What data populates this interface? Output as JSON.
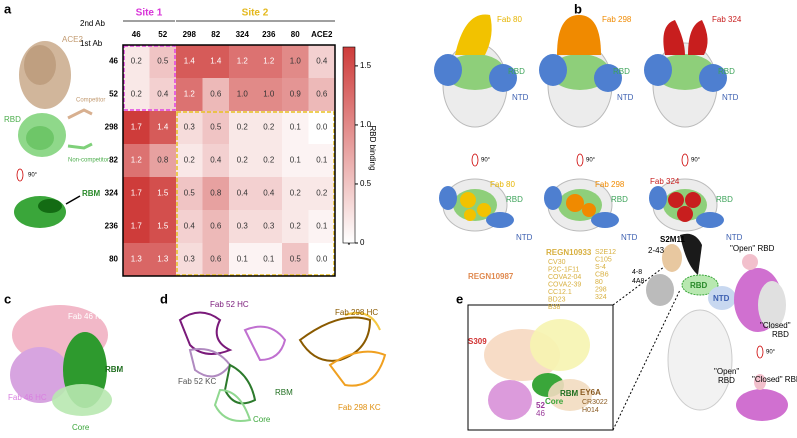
{
  "panels": [
    "a",
    "b",
    "c",
    "d",
    "e"
  ],
  "a": {
    "second_ab": "2nd Ab",
    "first_ab": "1st Ab",
    "site1": "Site 1",
    "site2": "Site 2",
    "columns": [
      "46",
      "52",
      "298",
      "82",
      "324",
      "236",
      "80",
      "ACE2"
    ],
    "rows": [
      {
        "label": "46",
        "values": [
          "0.2",
          "0.5",
          "1.4",
          "1.4",
          "1.2",
          "1.2",
          "1.0",
          "0.4"
        ]
      },
      {
        "label": "52",
        "values": [
          "0.2",
          "0.4",
          "1.2",
          "0.6",
          "1.0",
          "1.0",
          "0.9",
          "0.6"
        ]
      },
      {
        "label": "298",
        "values": [
          "1.7",
          "1.4",
          "0.3",
          "0.5",
          "0.2",
          "0.2",
          "0.1",
          "0.0"
        ]
      },
      {
        "label": "82",
        "values": [
          "1.2",
          "0.8",
          "0.2",
          "0.4",
          "0.2",
          "0.2",
          "0.1",
          "0.1"
        ]
      },
      {
        "label": "324",
        "values": [
          "1.7",
          "1.5",
          "0.5",
          "0.8",
          "0.4",
          "0.4",
          "0.2",
          "0.2"
        ]
      },
      {
        "label": "236",
        "values": [
          "1.7",
          "1.5",
          "0.4",
          "0.6",
          "0.3",
          "0.3",
          "0.2",
          "0.1"
        ]
      },
      {
        "label": "80",
        "values": [
          "1.3",
          "1.3",
          "0.3",
          "0.6",
          "0.1",
          "0.1",
          "0.5",
          "0.0"
        ]
      }
    ],
    "colorbar": {
      "title": "RBD binding",
      "plus": "+",
      "minus": "-",
      "ticks": [
        "0",
        "0.5",
        "1.0",
        "1.5"
      ]
    },
    "structure": {
      "ace2": "ACE2",
      "competitor": "Competitor",
      "rbd": "RBD",
      "non_competitor": "Non-competitor",
      "rotation": "90°",
      "rbm": "RBM"
    }
  },
  "b": {
    "top": [
      {
        "fab": "Fab 80",
        "rbd": "RBD",
        "ntd": "NTD"
      },
      {
        "fab": "Fab 298",
        "rbd": "RBD",
        "ntd": "NTD"
      },
      {
        "fab": "Fab 324",
        "rbd": "RBD",
        "ntd": "NTD"
      }
    ],
    "rotation": [
      "90°",
      "90°",
      "90°"
    ],
    "bottom": [
      {
        "fab": "Fab 80",
        "rbd": "RBD",
        "ntd": "NTD"
      },
      {
        "fab": "Fab 298",
        "rbd": "RBD",
        "ntd": "NTD"
      },
      {
        "fab": "Fab 324",
        "rbd": "RBD",
        "ntd": "NTD"
      }
    ]
  },
  "c": {
    "kc": "Fab 46 KC",
    "hc": "Fab 46 HC",
    "rbm": "RBM",
    "core": "Core"
  },
  "d": {
    "hc52": "Fab 52 HC",
    "kc52": "Fab 52 KC",
    "hc298": "Fab 298 HC",
    "kc298": "Fab 298 KC",
    "rbm": "RBM",
    "core": "Core"
  },
  "e": {
    "regn10933": "REGN10933",
    "list_yellow": [
      "CV30",
      "P2C-1F11",
      "COVA2-04",
      "COVA2-39",
      "CC12.1",
      "BD23",
      "B38"
    ],
    "list_right": [
      "S2E12",
      "C105",
      "S-4",
      "CB6",
      "80",
      "298",
      "324"
    ],
    "regn10987": "REGN10987",
    "s309": "S309",
    "fab52": "52",
    "fab46": "46",
    "rbm": "RBM",
    "core": "Core",
    "ey6a": "EY6A",
    "list_brown": [
      "CR3022",
      "H014"
    ],
    "s2m11": "S2M11",
    "ab243": "2-43",
    "ab48": "4-8",
    "ab4a8": "4A8",
    "rbd": "RBD",
    "ntd": "NTD",
    "open1": "\"Open\" RBD",
    "closed1": [
      "\"Closed\"",
      "RBD"
    ],
    "rotation": "90°",
    "open2": [
      "\"Open\"",
      "RBD"
    ],
    "closed2": "\"Closed\" RBD"
  }
}
